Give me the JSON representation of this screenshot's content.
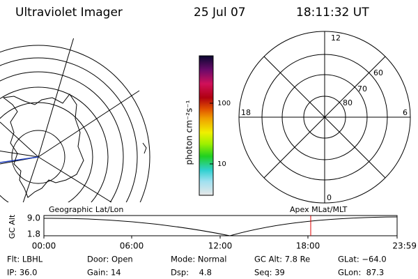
{
  "header": {
    "title": "Ultraviolet Imager",
    "date": "25 Jul 07",
    "time": "18:11:32 UT"
  },
  "colorbar": {
    "label": "photon cm⁻²s⁻¹",
    "ticks": [
      "100",
      "10"
    ]
  },
  "polar": {
    "mlt_labels": [
      "12",
      "18",
      "6",
      "0"
    ],
    "lat_labels": [
      "60",
      "70",
      "80"
    ]
  },
  "timeline": {
    "left_title": "Geographic Lat/Lon",
    "right_title": "Apex MLat/MLT",
    "ylabel": "GC Alt",
    "yticks": [
      "9.0",
      "1.8"
    ],
    "xticks": [
      "00:00",
      "06:00",
      "12:00",
      "18:00",
      "23:59"
    ]
  },
  "status": {
    "rows": [
      [
        "Flt: LBHL",
        "Door: Open",
        "Mode: Normal",
        "GC Alt: 7.8 Re",
        "GLat: −64.0"
      ],
      [
        "IP: 36.0",
        "Gain: 14",
        "Dsp:    4.8",
        "Seq: 39",
        "GLon:  87.3"
      ]
    ]
  }
}
